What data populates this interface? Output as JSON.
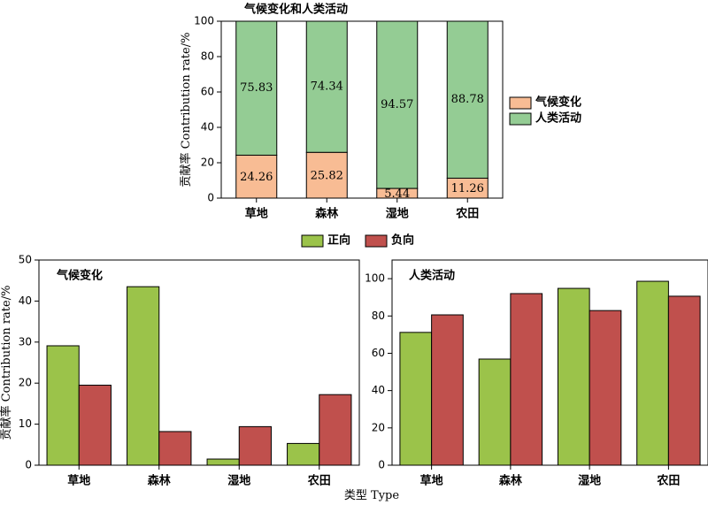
{
  "colors": {
    "climate_stack": "#f8bc94",
    "human_stack": "#94cc94",
    "positive": "#9bc34a",
    "negative": "#c0504d",
    "stroke": "#000000"
  },
  "shared": {
    "ylabel": "贡献率 Contribution rate/%",
    "xlabel": "类型 Type"
  },
  "chart_data": [
    {
      "id": "top",
      "type": "bar",
      "stacked": true,
      "title": "气候变化和人类活动",
      "categories": [
        "草地",
        "森林",
        "湿地",
        "农田"
      ],
      "series": [
        {
          "name": "气候变化",
          "values": [
            24.26,
            25.82,
            5.44,
            11.26
          ],
          "labels": [
            "24.26",
            "25.82",
            "5.44",
            "11.26"
          ]
        },
        {
          "name": "人类活动",
          "values": [
            75.83,
            74.34,
            94.57,
            88.78
          ],
          "labels": [
            "75.83",
            "74.34",
            "94.57",
            "88.78"
          ]
        }
      ],
      "ylim": [
        0,
        100
      ],
      "yticks": [
        "0",
        "20",
        "40",
        "60",
        "80",
        "100"
      ],
      "legend_position": "right"
    },
    {
      "id": "bottom-left",
      "type": "bar",
      "stacked": false,
      "title": "气候变化",
      "categories": [
        "草地",
        "森林",
        "湿地",
        "农田"
      ],
      "series": [
        {
          "name": "正向",
          "values": [
            29.1,
            43.5,
            1.5,
            5.3
          ]
        },
        {
          "name": "负向",
          "values": [
            19.5,
            8.2,
            9.4,
            17.2
          ]
        }
      ],
      "ylim": [
        0,
        50
      ],
      "yticks": [
        "0",
        "10",
        "20",
        "30",
        "40",
        "50"
      ],
      "legend_position": "top-center"
    },
    {
      "id": "bottom-right",
      "type": "bar",
      "stacked": false,
      "title": "人类活动",
      "categories": [
        "草地",
        "森林",
        "湿地",
        "农田"
      ],
      "series": [
        {
          "name": "正向",
          "values": [
            71.2,
            56.9,
            94.8,
            98.6
          ]
        },
        {
          "name": "负向",
          "values": [
            80.6,
            92.0,
            82.9,
            90.6
          ]
        }
      ],
      "ylim": [
        0,
        110
      ],
      "yticks": [
        "0",
        "20",
        "40",
        "60",
        "80",
        "100"
      ],
      "legend_position": "top-center"
    }
  ]
}
